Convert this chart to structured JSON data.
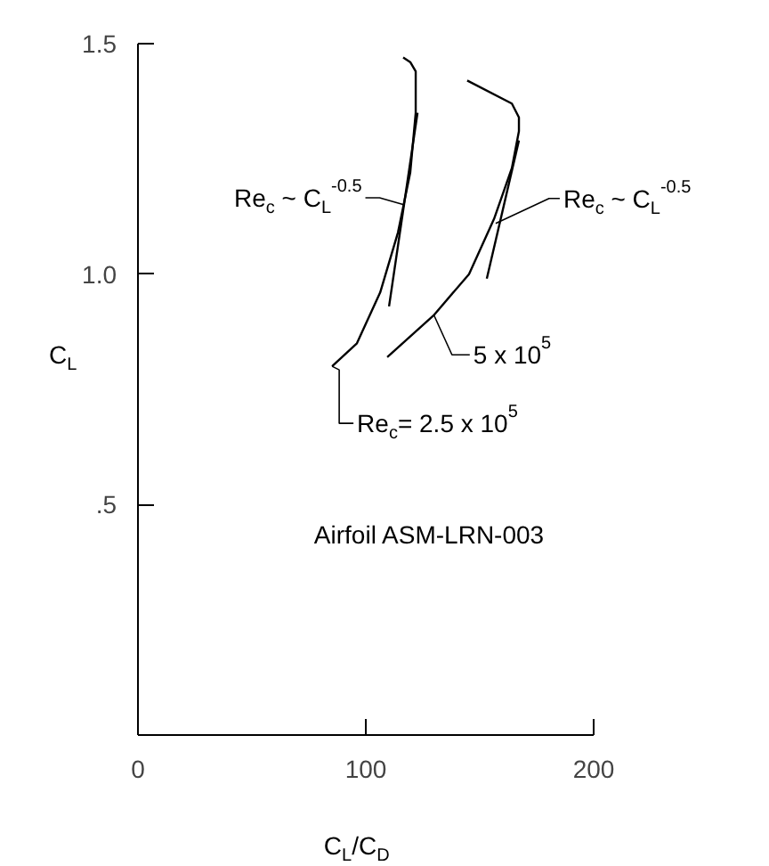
{
  "chart_data": {
    "type": "line",
    "xlabel": "C$_{L}$/C$_{D}$",
    "ylabel": "C$_{L}$",
    "xlim": [
      0,
      200
    ],
    "ylim": [
      0,
      1.5
    ],
    "xticks": [
      0,
      100,
      200
    ],
    "yticks": [
      {
        "value": 0.5,
        "label": ".5"
      },
      {
        "value": 1.0,
        "label": "1.0"
      },
      {
        "value": 1.5,
        "label": "1.5"
      }
    ],
    "series": [
      {
        "color": "#000000",
        "x": [
          85.2,
          96.1,
          106.3,
          114.1,
          119.5,
          121.9,
          121.9,
          119.5,
          116.4
        ],
        "values": [
          0.8,
          0.85,
          0.96,
          1.09,
          1.22,
          1.35,
          1.44,
          1.46,
          1.47
        ]
      },
      {
        "color": "#000000",
        "x": [
          110.2,
          122.7
        ],
        "values": [
          0.93,
          1.35
        ]
      },
      {
        "color": "#000000",
        "x": [
          109.4,
          129.7,
          145.3,
          156.3,
          164.1,
          167.2,
          167.2,
          164.1,
          144.5
        ],
        "values": [
          0.82,
          0.91,
          1.0,
          1.12,
          1.23,
          1.31,
          1.34,
          1.37,
          1.42
        ]
      },
      {
        "color": "#000000",
        "x": [
          153.1,
          167.2
        ],
        "values": [
          0.99,
          1.29
        ]
      }
    ],
    "annotations": [
      {
        "text": "Re$_{c}$ ~ C$_{L}$$^{-0.5}$",
        "x": 117,
        "y": 1.15
      },
      {
        "text": "Re$_{c}$ ~ C$_{L}$$^{-0.5}$",
        "x": 157,
        "y": 1.11
      },
      {
        "text": "5 x 10$^{5}$",
        "x": 130,
        "y": 0.91
      },
      {
        "text": "Re$_{c}$= 2.5 x 10$^{5}$",
        "x": 85.2,
        "y": 0.8
      },
      "Airfoil ASM-LRN-003"
    ]
  }
}
